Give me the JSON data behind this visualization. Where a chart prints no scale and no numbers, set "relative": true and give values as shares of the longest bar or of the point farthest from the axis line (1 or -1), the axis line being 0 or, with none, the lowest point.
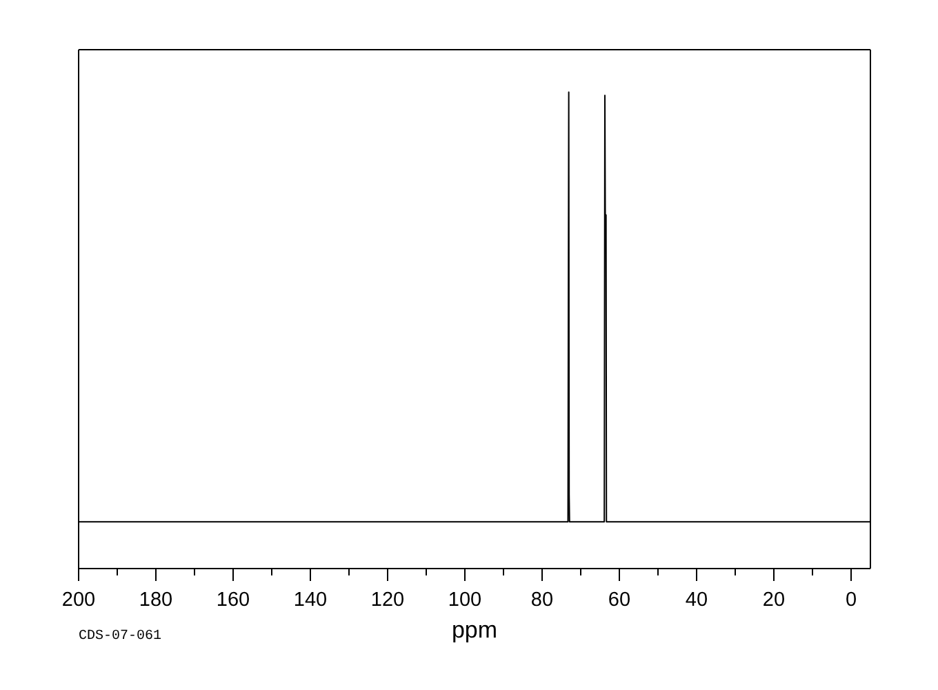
{
  "chart_data": {
    "type": "line",
    "xlabel": "ppm",
    "annotations": [
      "CDS-07-061"
    ],
    "relative": true,
    "x": [
      200,
      73.3,
      73.1,
      73.0,
      72.9,
      63.9,
      63.75,
      63.65,
      63.45,
      63.35,
      -5
    ],
    "series": [
      {
        "color": "#000000",
        "values": [
          0.098,
          0.098,
          1,
          0.156,
          0.098,
          0.098,
          0.993,
          0.742,
          0.742,
          0.098,
          0.098
        ]
      }
    ],
    "xlim": [
      200,
      -5
    ],
    "xticks": [
      200,
      {
        "value": 190,
        "label": null
      },
      180,
      {
        "value": 170,
        "label": null
      },
      160,
      {
        "value": 150,
        "label": null
      },
      140,
      {
        "value": 130,
        "label": null
      },
      120,
      {
        "value": 110,
        "label": null
      },
      100,
      {
        "value": 90,
        "label": null
      },
      80,
      {
        "value": 70,
        "label": null
      },
      60,
      {
        "value": 50,
        "label": null
      },
      40,
      {
        "value": 30,
        "label": null
      },
      20,
      {
        "value": 10,
        "label": null
      },
      0
    ],
    "grid": false,
    "legend": false,
    "tick_labels": "x",
    "marker": "none",
    "line_style": "solid"
  }
}
